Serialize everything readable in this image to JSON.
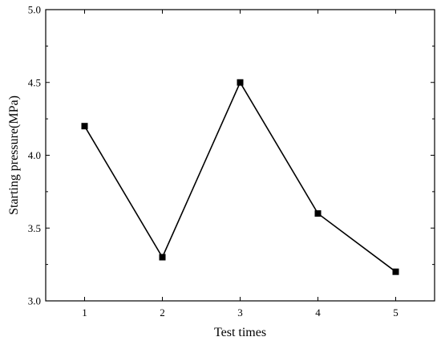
{
  "chart_data": {
    "type": "line",
    "x": [
      1,
      2,
      3,
      4,
      5
    ],
    "series": [
      {
        "values": [
          4.2,
          3.3,
          4.5,
          3.6,
          3.2
        ]
      }
    ],
    "xlabel": "Test times",
    "ylabel": "Starting pressure(MPa)",
    "xlim": [
      0.5,
      5.5
    ],
    "ylim": [
      3.0,
      5.0
    ],
    "xticks": [
      "1",
      "2",
      "3",
      "4",
      "5"
    ],
    "yticks": [
      "3.0",
      "3.5",
      "4.0",
      "4.5",
      "5.0"
    ],
    "grid": false,
    "marker": "square",
    "colors": {
      "series": "#000000"
    }
  }
}
